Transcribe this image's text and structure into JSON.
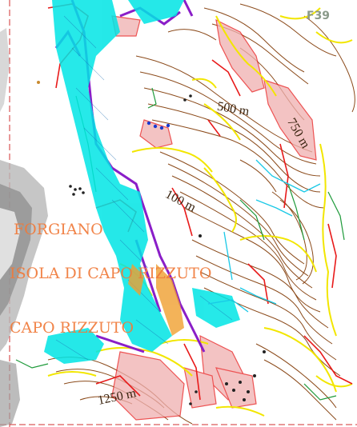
{
  "map": {
    "sheet_number": "F39",
    "place_labels": {
      "forgiano": "FORGIANO",
      "isola": "ISOLA DI CAPO RIZZUTO",
      "capo_rizzuto": "CAPO RIZZUTO"
    },
    "contour_labels": {
      "c500": "500 m",
      "c750": "750 m",
      "c100": "100 m",
      "c1250": "1250 m"
    },
    "colors": {
      "background": "#ffffff",
      "contour": "#8b4a1a",
      "cyan_hatch": "#00e5e5",
      "purple_line": "#8a1ec8",
      "yellow_line": "#f2e600",
      "red_line": "#e81a1a",
      "pink_zone": "#f0b0b0",
      "green_line": "#1e9a3a",
      "relief_gray": "#9a9a9a"
    }
  }
}
